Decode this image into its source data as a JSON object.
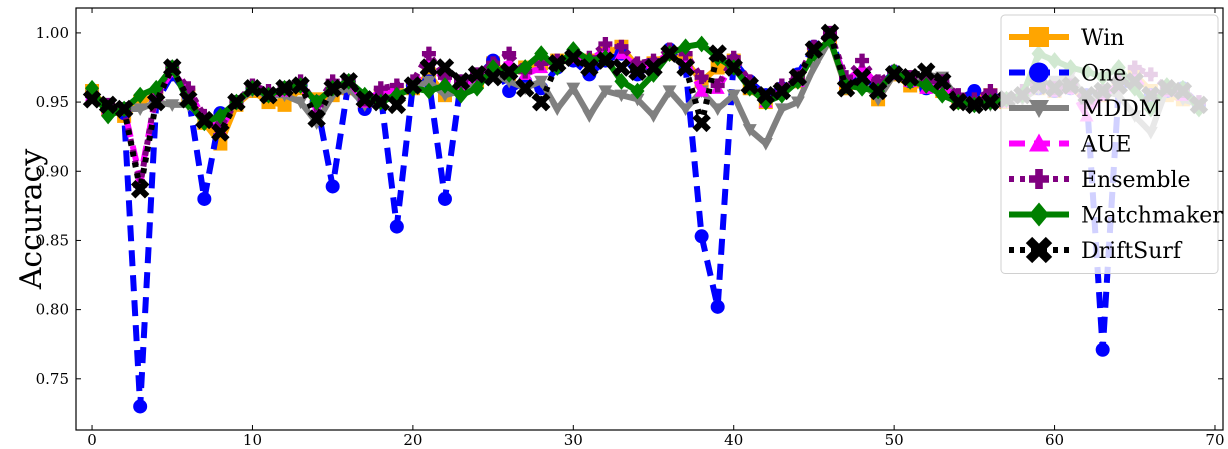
{
  "chart_data": {
    "type": "line",
    "title": "",
    "xlabel": "",
    "ylabel": "Accuracy",
    "xlim": [
      -1,
      70.5
    ],
    "ylim": [
      0.713,
      1.018
    ],
    "xticks": [
      0,
      10,
      20,
      30,
      40,
      50,
      60,
      70
    ],
    "yticks": [
      0.75,
      0.8,
      0.85,
      0.9,
      0.95,
      1.0
    ],
    "ytick_labels": [
      "0.75",
      "0.80",
      "0.85",
      "0.90",
      "0.95",
      "1.00"
    ],
    "grid": false,
    "legend_position": "top-right",
    "x": [
      0,
      1,
      2,
      3,
      4,
      5,
      6,
      7,
      8,
      9,
      10,
      11,
      12,
      13,
      14,
      15,
      16,
      17,
      18,
      19,
      20,
      21,
      22,
      23,
      24,
      25,
      26,
      27,
      28,
      29,
      30,
      31,
      32,
      33,
      34,
      35,
      36,
      37,
      38,
      39,
      40,
      41,
      42,
      43,
      44,
      45,
      46,
      47,
      48,
      49,
      50,
      51,
      52,
      53,
      54,
      55,
      56,
      57,
      58,
      59,
      60,
      61,
      62,
      63,
      64,
      65,
      66,
      67,
      68,
      69
    ],
    "series": [
      {
        "name": "Win",
        "color": "#ffa500",
        "dash": "solid",
        "marker": "square",
        "values": [
          0.958,
          0.945,
          0.94,
          0.95,
          0.955,
          0.97,
          0.955,
          0.935,
          0.92,
          0.948,
          0.958,
          0.95,
          0.948,
          0.96,
          0.952,
          0.955,
          0.96,
          0.95,
          0.955,
          0.955,
          0.96,
          0.97,
          0.955,
          0.96,
          0.965,
          0.978,
          0.97,
          0.975,
          0.978,
          0.98,
          0.982,
          0.98,
          0.985,
          0.99,
          0.975,
          0.978,
          0.985,
          0.98,
          0.965,
          0.975,
          0.98,
          0.96,
          0.95,
          0.958,
          0.965,
          0.985,
          0.995,
          0.96,
          0.965,
          0.952,
          0.97,
          0.962,
          0.962,
          0.958,
          0.95,
          0.952,
          0.955,
          0.95,
          0.955,
          0.96,
          0.958,
          0.962,
          0.95,
          0.955,
          0.962,
          0.97,
          0.958,
          0.955,
          0.952,
          0.948
        ]
      },
      {
        "name": "One",
        "color": "#0000ff",
        "dash": "dashed",
        "marker": "circle",
        "values": [
          0.955,
          0.945,
          0.942,
          0.73,
          0.95,
          0.97,
          0.955,
          0.88,
          0.942,
          0.95,
          0.96,
          0.955,
          0.958,
          0.962,
          0.95,
          0.889,
          0.965,
          0.945,
          0.955,
          0.86,
          0.962,
          0.965,
          0.88,
          0.965,
          0.968,
          0.98,
          0.958,
          0.965,
          0.96,
          0.975,
          0.98,
          0.97,
          0.98,
          0.985,
          0.97,
          0.975,
          0.988,
          0.975,
          0.853,
          0.802,
          0.98,
          0.965,
          0.955,
          0.96,
          0.97,
          0.99,
          0.998,
          0.965,
          0.968,
          0.96,
          0.972,
          0.965,
          0.96,
          0.965,
          0.952,
          0.958,
          0.955,
          0.952,
          0.955,
          0.96,
          0.958,
          0.96,
          0.955,
          0.771,
          0.96,
          0.965,
          0.955,
          0.958,
          0.96,
          0.948
        ]
      },
      {
        "name": "MDDM",
        "color": "#808080",
        "dash": "solid",
        "marker": "triangle-down",
        "values": [
          0.955,
          0.945,
          0.945,
          0.945,
          0.95,
          0.948,
          0.948,
          0.938,
          0.935,
          0.95,
          0.958,
          0.955,
          0.955,
          0.95,
          0.935,
          0.955,
          0.96,
          0.948,
          0.952,
          0.955,
          0.96,
          0.965,
          0.955,
          0.958,
          0.965,
          0.97,
          0.965,
          0.96,
          0.965,
          0.945,
          0.96,
          0.94,
          0.958,
          0.955,
          0.952,
          0.94,
          0.958,
          0.945,
          0.958,
          0.945,
          0.955,
          0.93,
          0.92,
          0.945,
          0.95,
          0.975,
          0.995,
          0.96,
          0.965,
          0.952,
          0.97,
          0.965,
          0.97,
          0.968,
          0.952,
          0.95,
          0.948,
          0.95,
          0.952,
          0.96,
          0.965,
          0.97,
          0.95,
          0.958,
          0.955,
          0.94,
          0.928,
          0.96,
          0.952,
          0.948
        ]
      },
      {
        "name": "AUE",
        "color": "#ff00ff",
        "dash": "dashed",
        "marker": "triangle-up",
        "values": [
          0.955,
          0.945,
          0.945,
          0.895,
          0.955,
          0.972,
          0.958,
          0.938,
          0.93,
          0.95,
          0.96,
          0.955,
          0.958,
          0.962,
          0.945,
          0.962,
          0.965,
          0.95,
          0.958,
          0.958,
          0.962,
          0.98,
          0.965,
          0.962,
          0.968,
          0.975,
          0.978,
          0.97,
          0.975,
          0.978,
          0.982,
          0.98,
          0.988,
          0.985,
          0.975,
          0.978,
          0.985,
          0.98,
          0.958,
          0.96,
          0.978,
          0.962,
          0.95,
          0.96,
          0.965,
          0.988,
          0.998,
          0.965,
          0.975,
          0.962,
          0.97,
          0.965,
          0.96,
          0.962,
          0.952,
          0.95,
          0.955,
          0.95,
          0.955,
          0.962,
          0.958,
          0.96,
          0.94,
          0.955,
          0.962,
          0.968,
          0.955,
          0.958,
          0.955,
          0.948
        ]
      },
      {
        "name": "Ensemble",
        "color": "#800080",
        "dash": "dotted",
        "marker": "plus",
        "values": [
          0.955,
          0.948,
          0.945,
          0.89,
          0.958,
          0.975,
          0.96,
          0.94,
          0.932,
          0.95,
          0.962,
          0.958,
          0.96,
          0.965,
          0.948,
          0.965,
          0.965,
          0.952,
          0.96,
          0.962,
          0.965,
          0.985,
          0.968,
          0.965,
          0.97,
          0.978,
          0.985,
          0.972,
          0.978,
          0.98,
          0.985,
          0.982,
          0.992,
          0.99,
          0.978,
          0.98,
          0.988,
          0.985,
          0.968,
          0.962,
          0.982,
          0.965,
          0.952,
          0.962,
          0.968,
          0.99,
          1.0,
          0.968,
          0.98,
          0.965,
          0.972,
          0.968,
          0.965,
          0.965,
          0.955,
          0.952,
          0.958,
          0.952,
          0.958,
          0.965,
          0.96,
          0.962,
          0.95,
          0.958,
          0.965,
          0.975,
          0.97,
          0.96,
          0.958,
          0.95
        ]
      },
      {
        "name": "Matchmaker",
        "color": "#008000",
        "dash": "solid",
        "marker": "diamond",
        "values": [
          0.96,
          0.94,
          0.945,
          0.955,
          0.96,
          0.975,
          0.95,
          0.935,
          0.94,
          0.95,
          0.96,
          0.955,
          0.96,
          0.962,
          0.95,
          0.96,
          0.965,
          0.955,
          0.95,
          0.955,
          0.96,
          0.958,
          0.962,
          0.955,
          0.96,
          0.975,
          0.97,
          0.975,
          0.985,
          0.975,
          0.988,
          0.98,
          0.982,
          0.965,
          0.958,
          0.97,
          0.985,
          0.99,
          0.992,
          0.982,
          0.975,
          0.96,
          0.95,
          0.955,
          0.965,
          0.985,
          0.995,
          0.962,
          0.96,
          0.958,
          0.972,
          0.965,
          0.962,
          0.955,
          0.95,
          0.948,
          0.95,
          0.952,
          0.955,
          0.985,
          0.98,
          0.975,
          0.972,
          0.968,
          0.975,
          0.96,
          0.945,
          0.962,
          0.96,
          0.945
        ]
      },
      {
        "name": "DriftSurf",
        "color": "#000000",
        "dash": "dotted",
        "marker": "x",
        "values": [
          0.952,
          0.948,
          0.945,
          0.887,
          0.95,
          0.975,
          0.952,
          0.937,
          0.928,
          0.95,
          0.96,
          0.955,
          0.96,
          0.962,
          0.938,
          0.96,
          0.965,
          0.952,
          0.95,
          0.948,
          0.962,
          0.975,
          0.975,
          0.965,
          0.97,
          0.968,
          0.972,
          0.96,
          0.95,
          0.978,
          0.982,
          0.975,
          0.98,
          0.975,
          0.972,
          0.975,
          0.985,
          0.975,
          0.935,
          0.985,
          0.975,
          0.962,
          0.955,
          0.958,
          0.968,
          0.988,
          1.0,
          0.96,
          0.968,
          0.958,
          0.97,
          0.968,
          0.972,
          0.965,
          0.95,
          0.948,
          0.95,
          0.952,
          0.955,
          0.962,
          0.96,
          0.962,
          0.955,
          0.958,
          0.962,
          0.965,
          0.955,
          0.96,
          0.958,
          0.948
        ]
      }
    ]
  }
}
